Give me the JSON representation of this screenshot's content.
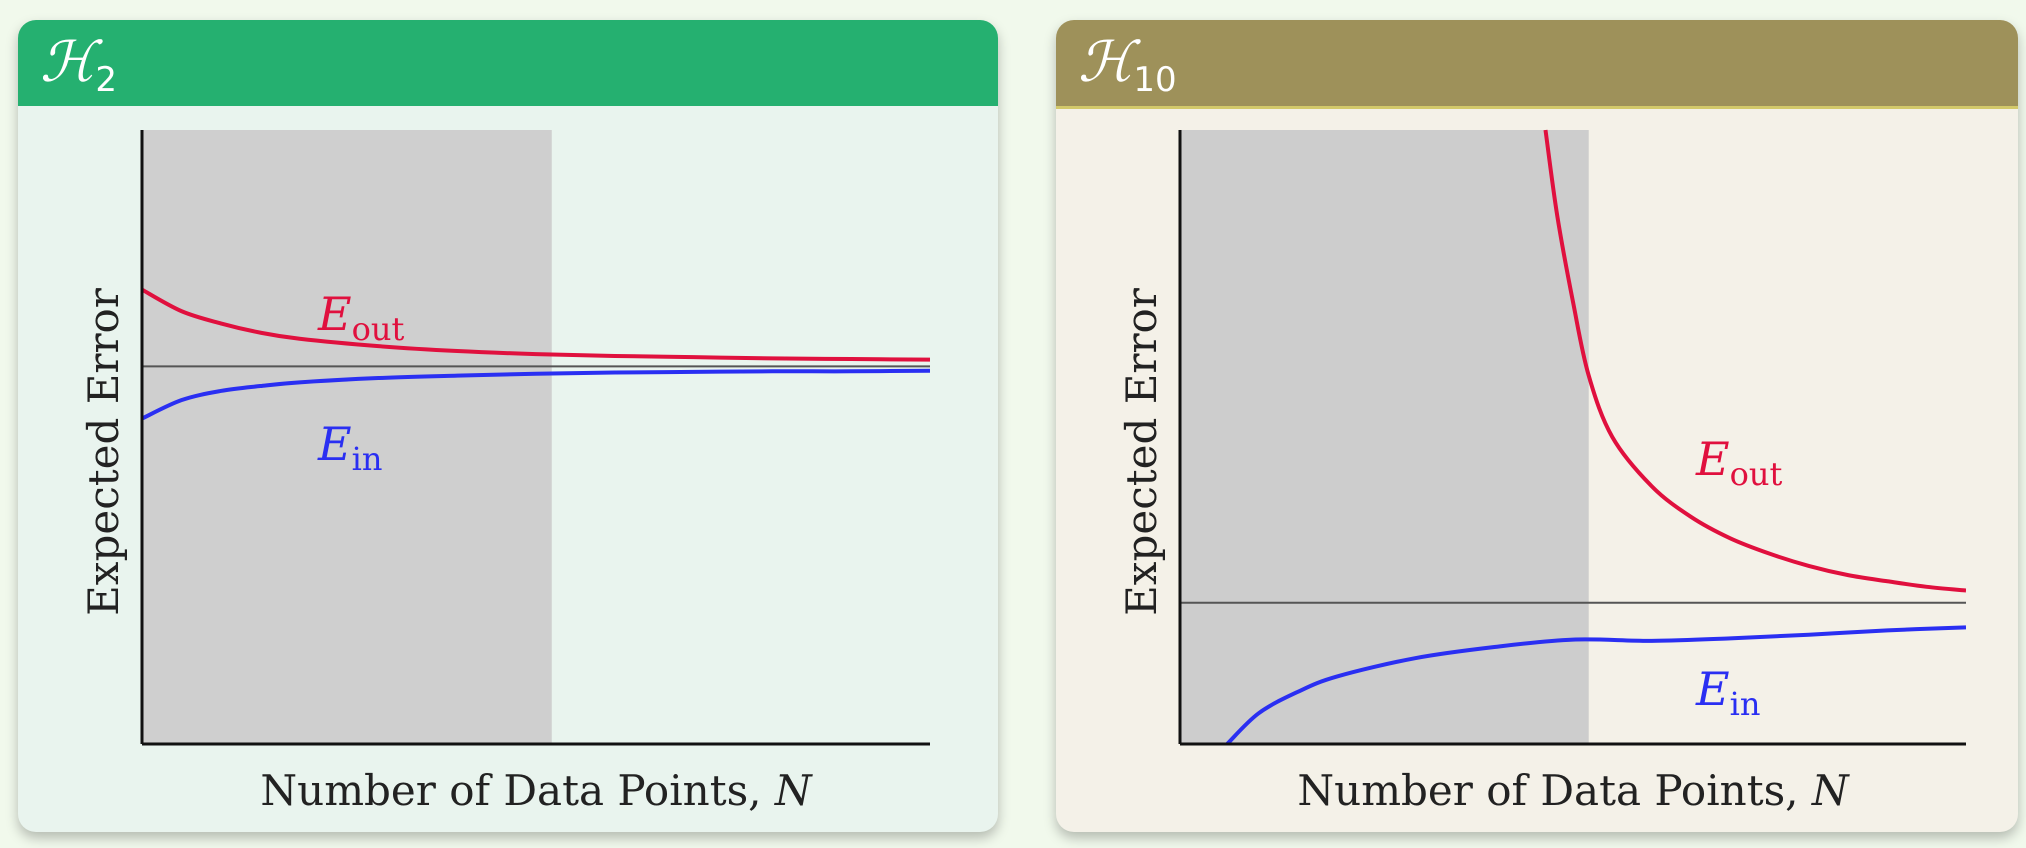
{
  "panels": [
    {
      "title_main": "ℋ",
      "title_sub": "2",
      "header_color": "#25b070"
    },
    {
      "title_main": "ℋ",
      "title_sub": "10",
      "header_color": "#9e915a"
    }
  ],
  "chart_data": [
    {
      "type": "line",
      "title": "ℋ2",
      "xlabel": "Number of Data Points, N",
      "ylabel": "Expected Error",
      "xlim": [
        0,
        1
      ],
      "ylim": [
        0,
        1
      ],
      "grid": false,
      "shaded_region_x": [
        0,
        0.52
      ],
      "reference_line_y": 0.615,
      "series": [
        {
          "name": "E_out",
          "label_main": "E",
          "label_sub": "out",
          "color": "#e0103e",
          "x": [
            0,
            0.05,
            0.1,
            0.15,
            0.2,
            0.3,
            0.4,
            0.5,
            0.6,
            0.7,
            0.8,
            0.9,
            1.0
          ],
          "y": [
            0.74,
            0.705,
            0.685,
            0.67,
            0.66,
            0.648,
            0.64,
            0.635,
            0.632,
            0.63,
            0.628,
            0.627,
            0.626
          ]
        },
        {
          "name": "E_in",
          "label_main": "E",
          "label_sub": "in",
          "color": "#2a2ff2",
          "x": [
            0,
            0.05,
            0.1,
            0.15,
            0.2,
            0.3,
            0.4,
            0.5,
            0.6,
            0.7,
            0.8,
            0.9,
            1.0
          ],
          "y": [
            0.53,
            0.56,
            0.575,
            0.583,
            0.589,
            0.596,
            0.6,
            0.603,
            0.605,
            0.606,
            0.607,
            0.607,
            0.608
          ]
        }
      ]
    },
    {
      "type": "line",
      "title": "ℋ10",
      "xlabel": "Number of Data Points, N",
      "ylabel": "Expected Error",
      "xlim": [
        0,
        1
      ],
      "ylim": [
        0,
        1
      ],
      "grid": false,
      "shaded_region_x": [
        0,
        0.52
      ],
      "reference_line_y": 0.23,
      "series": [
        {
          "name": "E_out",
          "label_main": "E",
          "label_sub": "out",
          "color": "#e0103e",
          "x": [
            0.465,
            0.48,
            0.5,
            0.52,
            0.55,
            0.6,
            0.65,
            0.7,
            0.75,
            0.8,
            0.85,
            0.9,
            0.95,
            1.0
          ],
          "y": [
            1.0,
            0.86,
            0.72,
            0.6,
            0.5,
            0.42,
            0.37,
            0.335,
            0.31,
            0.29,
            0.275,
            0.265,
            0.256,
            0.25
          ]
        },
        {
          "name": "E_in",
          "label_main": "E",
          "label_sub": "in",
          "color": "#2a2ff2",
          "x": [
            0.06,
            0.1,
            0.15,
            0.2,
            0.3,
            0.4,
            0.5,
            0.6,
            0.7,
            0.8,
            0.9,
            1.0
          ],
          "y": [
            0.0,
            0.05,
            0.085,
            0.11,
            0.14,
            0.158,
            0.17,
            0.168,
            0.172,
            0.178,
            0.185,
            0.19
          ]
        }
      ]
    }
  ]
}
